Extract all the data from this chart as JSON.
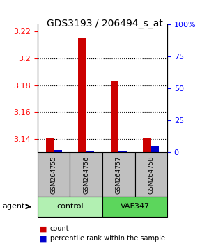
{
  "title": "GDS3193 / 206494_s_at",
  "samples": [
    "GSM264755",
    "GSM264756",
    "GSM264757",
    "GSM264758"
  ],
  "groups": [
    "control",
    "control",
    "VAF347",
    "VAF347"
  ],
  "group_labels": [
    "control",
    "VAF347"
  ],
  "group_colors": [
    "#90EE90",
    "#4CBB47"
  ],
  "ylim_left": [
    3.13,
    3.225
  ],
  "ylim_right": [
    0,
    100
  ],
  "yticks_left": [
    3.14,
    3.16,
    3.18,
    3.2,
    3.22
  ],
  "yticks_right": [
    0,
    25,
    50,
    75,
    100
  ],
  "ytick_labels_right": [
    "0",
    "25",
    "50",
    "75",
    "100%"
  ],
  "count_values": [
    3.141,
    3.215,
    3.183,
    3.141
  ],
  "percentile_values": [
    2,
    1,
    1,
    5
  ],
  "bar_width": 0.35,
  "count_color": "#CC0000",
  "percentile_color": "#0000CC",
  "grid_color": "#000000",
  "sample_box_color": "#C0C0C0",
  "background_color": "#ffffff",
  "legend_count_label": "count",
  "legend_percentile_label": "percentile rank within the sample",
  "agent_label": "agent"
}
